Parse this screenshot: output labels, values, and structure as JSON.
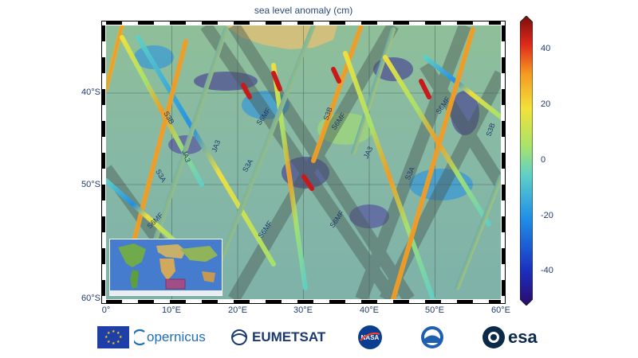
{
  "title": "sea level anomaly (cm)",
  "map": {
    "lat_labels": [
      "40°S",
      "50°S",
      "60°S"
    ],
    "lon_labels": [
      "0°",
      "10°E",
      "20°E",
      "30°E",
      "40°E",
      "50°E",
      "60°E"
    ],
    "track_labels": [
      "S3B",
      "JA3",
      "S3A",
      "JA3",
      "S6MF",
      "S3A",
      "S6MF",
      "S3B",
      "S6MF",
      "JA3",
      "S3A",
      "S6MF",
      "S6MF",
      "S6MF",
      "S3B"
    ]
  },
  "colorbar": {
    "ticks": [
      "40",
      "20",
      "0",
      "-20",
      "-40"
    ],
    "colors": [
      "#2b0a6b",
      "#1b2fbf",
      "#1f8fe8",
      "#5fd0c8",
      "#a8e36a",
      "#f2e23a",
      "#f59a22",
      "#e02a1a",
      "#7a0d0d"
    ]
  },
  "logos": {
    "copernicus": "opernicus",
    "eumetsat": "EUMETSAT",
    "nasa": "NASA",
    "esa": "esa"
  }
}
